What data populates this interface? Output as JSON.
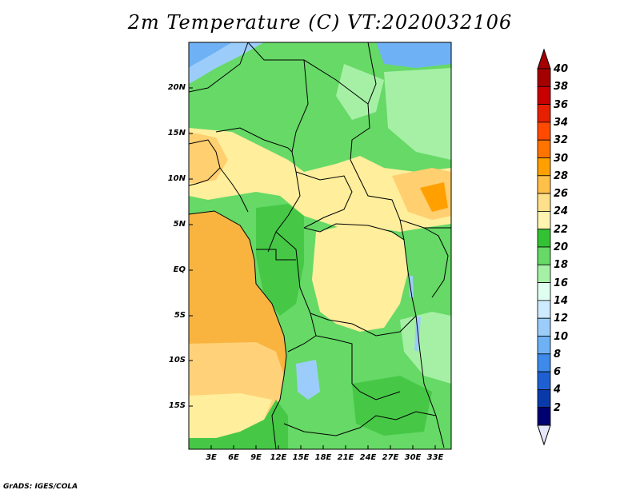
{
  "title": "2m Temperature (C) VT:2020032106",
  "credit": "GrADS: IGES/COLA",
  "lat_labels": [
    "20N",
    "15N",
    "10N",
    "5N",
    "EQ",
    "5S",
    "10S",
    "15S"
  ],
  "lon_labels": [
    "3E",
    "6E",
    "9E",
    "12E",
    "15E",
    "18E",
    "21E",
    "24E",
    "27E",
    "30E",
    "33E"
  ],
  "colorbar": {
    "labels": [
      "40",
      "38",
      "36",
      "34",
      "32",
      "30",
      "28",
      "26",
      "24",
      "22",
      "20",
      "18",
      "16",
      "14",
      "12",
      "10",
      "8",
      "6",
      "4",
      "2"
    ],
    "colors": [
      "#a50000",
      "#c80000",
      "#e62000",
      "#ff4a00",
      "#ff7400",
      "#ffa000",
      "#ffc04a",
      "#ffe08a",
      "#fff4b0",
      "#33c233",
      "#66d966",
      "#a6f0a6",
      "#e0fff0",
      "#cdeafe",
      "#9ccdfa",
      "#6eb2f5",
      "#3d8aeb",
      "#1e60d2",
      "#0a3aaa",
      "#000070"
    ],
    "top_triangle_color": "#a50000",
    "bottom_triangle_color": "#e6e6fa"
  },
  "palette": {
    "ocean": "#f8b43e",
    "ocean_warm": "#ffd27a",
    "land_green": "#46c846",
    "land_light": "#7fe07f",
    "land_yellow": "#ffee9c",
    "land_orange": "#ffcf70",
    "cool_blue": "#9ccdfa"
  }
}
